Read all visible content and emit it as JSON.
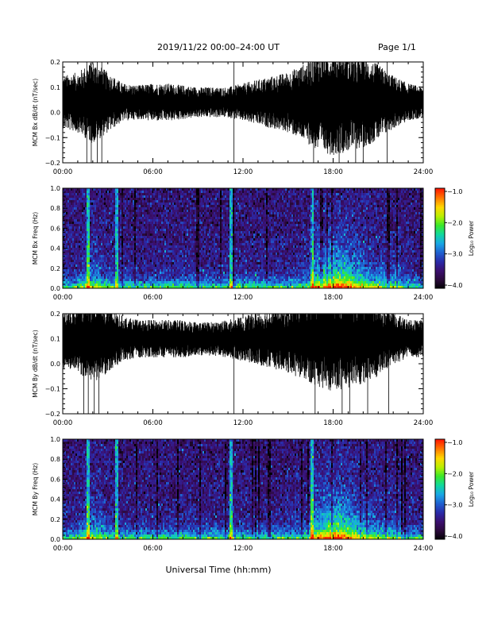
{
  "page": {
    "title": "2019/11/22  00:00–24:00 UT",
    "page_label": "Page 1/1",
    "xlabel": "Universal Time (hh:mm)"
  },
  "colors": {
    "trace": "#000000",
    "background": "#ffffff",
    "spectrogram_cmap": [
      "#000000",
      "#2a0a3a",
      "#3b0f6e",
      "#2a2aa8",
      "#1f60d0",
      "#19a6e6",
      "#10d8a0",
      "#39e82a",
      "#b9f000",
      "#ffd800",
      "#ff7a00",
      "#ff1a00"
    ]
  },
  "chart_data": [
    {
      "type": "line",
      "panel": "bx-timeseries",
      "ylabel": "MCM Bx dB/dt (nT/sec)",
      "x_ticks": [
        "00:00",
        "06:00",
        "12:00",
        "18:00",
        "24:00"
      ],
      "y_ticks": [
        "0.2",
        "0.1",
        "0.0",
        "−0.1",
        "−0.2"
      ],
      "xlim": [
        0,
        24
      ],
      "ylim": [
        -0.2,
        0.2
      ],
      "baseline": 0.04,
      "activity_profile_hours": [
        0,
        1,
        2,
        3,
        4,
        5,
        6,
        7,
        8,
        9,
        10,
        11,
        12,
        13,
        14,
        15,
        16,
        17,
        18,
        19,
        20,
        21,
        22,
        23,
        24
      ],
      "activity_profile_amplitude": [
        0.07,
        0.08,
        0.11,
        0.08,
        0.05,
        0.045,
        0.05,
        0.05,
        0.045,
        0.04,
        0.04,
        0.04,
        0.05,
        0.06,
        0.07,
        0.08,
        0.1,
        0.13,
        0.14,
        0.13,
        0.12,
        0.1,
        0.07,
        0.05,
        0.04
      ],
      "spikes_hours": [
        1.6,
        1.9,
        2.3,
        2.6,
        11.4,
        16.7,
        18.4,
        19.5,
        20.0,
        21.6
      ]
    },
    {
      "type": "heatmap",
      "panel": "bx-spectrogram",
      "ylabel": "MCM Bx Freq (Hz)",
      "x_ticks": [
        "00:00",
        "06:00",
        "12:00",
        "18:00",
        "24:00"
      ],
      "y_ticks": [
        "1.0",
        "0.8",
        "0.6",
        "0.4",
        "0.2",
        "0.0"
      ],
      "xlim": [
        0,
        24
      ],
      "ylim": [
        0.0,
        1.0
      ],
      "colorbar_label": "Log₁₀ Power",
      "colorbar_ticks": [
        "−1.0",
        "−2.0",
        "−3.0",
        "−4.0"
      ],
      "color_range": [
        -4.0,
        -1.0
      ],
      "vertical_lines_hours": [
        1.7,
        3.6,
        11.2,
        16.6
      ],
      "enhancement_hours": [
        16.5,
        22.5
      ]
    },
    {
      "type": "line",
      "panel": "by-timeseries",
      "ylabel": "MCM By dB/dt (nT/sec)",
      "x_ticks": [
        "00:00",
        "06:00",
        "12:00",
        "18:00",
        "24:00"
      ],
      "y_ticks": [
        "0.2",
        "0.1",
        "0.0",
        "−0.1",
        "−0.2"
      ],
      "xlim": [
        0,
        24
      ],
      "ylim": [
        -0.2,
        0.2
      ],
      "baseline": 0.1,
      "activity_profile_hours": [
        0,
        1,
        2,
        3,
        4,
        5,
        6,
        7,
        8,
        9,
        10,
        11,
        12,
        13,
        14,
        15,
        16,
        17,
        18,
        19,
        20,
        21,
        22,
        23,
        24
      ],
      "activity_profile_amplitude": [
        0.08,
        0.09,
        0.12,
        0.09,
        0.06,
        0.05,
        0.05,
        0.05,
        0.05,
        0.045,
        0.045,
        0.05,
        0.06,
        0.07,
        0.08,
        0.09,
        0.11,
        0.13,
        0.14,
        0.13,
        0.12,
        0.1,
        0.07,
        0.05,
        0.05
      ],
      "spikes_hours": [
        1.4,
        1.7,
        2.1,
        2.4,
        11.4,
        16.8,
        18.6,
        19.1,
        20.3,
        21.7
      ]
    },
    {
      "type": "heatmap",
      "panel": "by-spectrogram",
      "ylabel": "MCM By Freq (Hz)",
      "x_ticks": [
        "00:00",
        "06:00",
        "12:00",
        "18:00",
        "24:00"
      ],
      "y_ticks": [
        "1.0",
        "0.8",
        "0.6",
        "0.4",
        "0.2",
        "0.0"
      ],
      "xlim": [
        0,
        24
      ],
      "ylim": [
        0.0,
        1.0
      ],
      "colorbar_label": "Log₁₀ Power",
      "colorbar_ticks": [
        "−1.0",
        "−2.0",
        "−3.0",
        "−4.0"
      ],
      "color_range": [
        -4.0,
        -1.0
      ],
      "vertical_lines_hours": [
        1.7,
        3.6,
        11.2,
        16.6
      ],
      "enhancement_hours": [
        16.5,
        22.5
      ]
    }
  ]
}
